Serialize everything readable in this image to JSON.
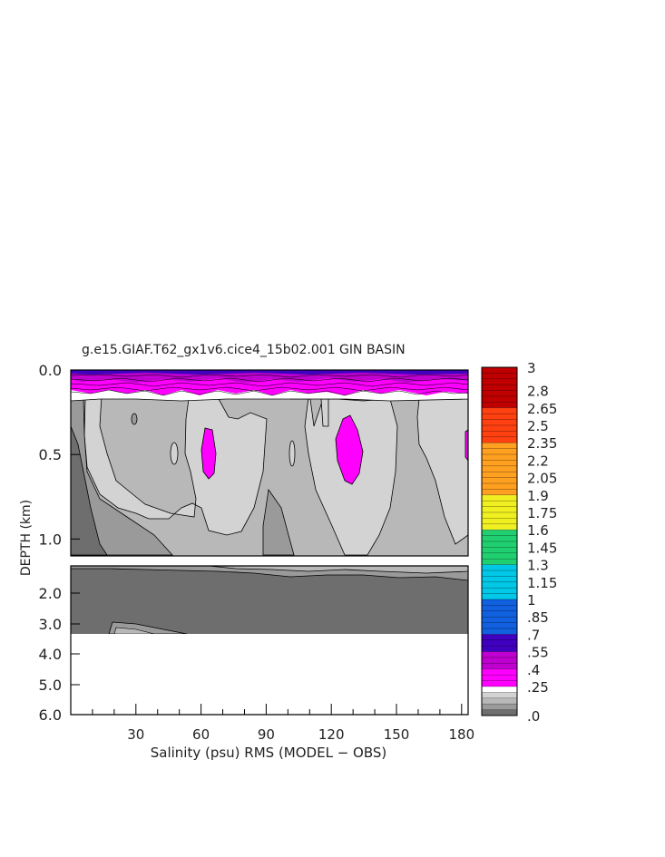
{
  "chart_data": {
    "type": "heatmap",
    "title": "g.e15.GIAF.T62_gx1v6.cice4_15b02.001 GIN BASIN",
    "xlabel": "Salinity (psu) RMS (MODEL − OBS)",
    "ylabel": "DEPTH (km)",
    "x_ticks": [
      "30",
      "60",
      "90",
      "120",
      "150",
      "180"
    ],
    "x_range": [
      0,
      183
    ],
    "upper_panel": {
      "y_range_km": [
        0.0,
        1.1
      ],
      "y_ticks": [
        "0.0",
        "0.5",
        "1.0"
      ]
    },
    "lower_panel": {
      "y_range_km": [
        1.1,
        6.0
      ],
      "y_ticks": [
        "2.0",
        "3.0",
        "4.0",
        "5.0",
        "6.0"
      ]
    },
    "colorbar_labels": [
      "3",
      "2.8",
      "2.65",
      "2.5",
      "2.35",
      "2.2",
      "2.05",
      "1.9",
      "1.75",
      "1.6",
      "1.45",
      "1.3",
      "1.15",
      "1",
      ".85",
      ".7",
      ".55",
      ".4",
      ".25",
      ".0"
    ],
    "colorbar_range": [
      0.0,
      3.0
    ],
    "levels": [
      {
        "range": [
          0.0,
          0.05
        ],
        "color": "#6e6e6e"
      },
      {
        "range": [
          0.05,
          0.1
        ],
        "color": "#9a9a9a"
      },
      {
        "range": [
          0.1,
          0.15
        ],
        "color": "#b8b8b8"
      },
      {
        "range": [
          0.15,
          0.2
        ],
        "color": "#d3d3d3"
      },
      {
        "range": [
          0.2,
          0.25
        ],
        "color": "#ffffff"
      },
      {
        "range": [
          0.25,
          0.4
        ],
        "color": "#ff00ff"
      },
      {
        "range": [
          0.4,
          0.55
        ],
        "color": "#c000d0"
      },
      {
        "range": [
          0.55,
          0.7
        ],
        "color": "#4000c0"
      },
      {
        "range": [
          0.7,
          1.0
        ],
        "color": "#1060e0"
      },
      {
        "range": [
          1.0,
          1.3
        ],
        "color": "#00c8e6"
      },
      {
        "range": [
          1.3,
          1.6
        ],
        "color": "#20d070"
      },
      {
        "range": [
          1.6,
          1.9
        ],
        "color": "#f0f020"
      },
      {
        "range": [
          1.9,
          2.35
        ],
        "color": "#ffa020"
      },
      {
        "range": [
          2.35,
          2.65
        ],
        "color": "#ff4010"
      },
      {
        "range": [
          2.65,
          3.0
        ],
        "color": "#c00000"
      }
    ],
    "regions": [
      {
        "name": "surface-layer-high-rms",
        "value_range": [
          0.25,
          0.55
        ],
        "depth_km": [
          0.0,
          0.12
        ]
      },
      {
        "name": "deep-layer",
        "value_range": [
          0.0,
          0.05
        ],
        "depth_km": [
          2.0,
          3.4
        ]
      },
      {
        "name": "no-data-below",
        "depth_km": [
          3.4,
          6.0
        ]
      }
    ]
  }
}
